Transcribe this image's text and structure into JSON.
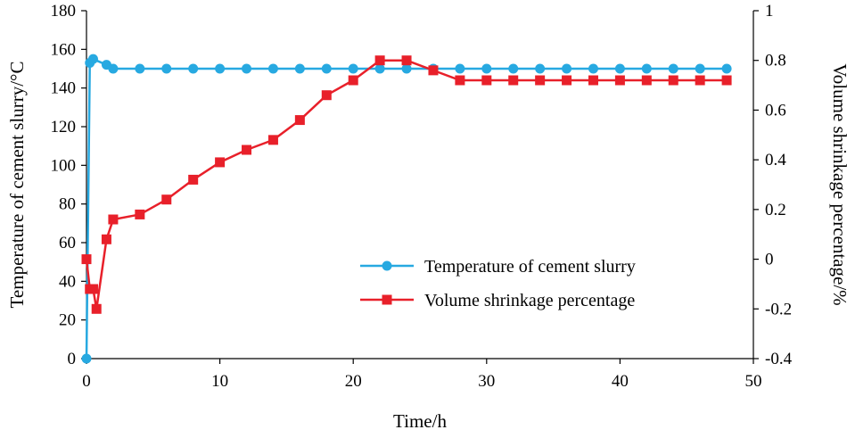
{
  "chart_data": {
    "type": "line",
    "xlabel": "Time/h",
    "ylabel_left": "Temperature of cement slurry/°C",
    "ylabel_right": "Volume shrinkage percentage/%",
    "xlim": [
      0,
      50
    ],
    "xticks": [
      0,
      10,
      20,
      30,
      40,
      50
    ],
    "ylim_left": [
      0,
      180
    ],
    "yticks_left": [
      0,
      20,
      40,
      60,
      80,
      100,
      120,
      140,
      160,
      180
    ],
    "ylim_right": [
      -0.4,
      1.0
    ],
    "yticks_right": [
      {
        "value": -0.4,
        "label": "-0.4"
      },
      {
        "value": -0.2,
        "label": "-0.2"
      },
      {
        "value": 0.0,
        "label": "0"
      },
      {
        "value": 0.2,
        "label": "0.2"
      },
      {
        "value": 0.4,
        "label": "0.4"
      },
      {
        "value": 0.6,
        "label": "0.6"
      },
      {
        "value": 0.8,
        "label": "0.8"
      },
      {
        "value": 1.0,
        "label": "1"
      }
    ],
    "legend_position": "lower-right",
    "series": [
      {
        "name": "Temperature of cement slurry",
        "axis": "left",
        "color": "#27a9e1",
        "marker": "circle",
        "x": [
          0,
          0.25,
          0.5,
          1.5,
          2,
          4,
          6,
          8,
          10,
          12,
          14,
          16,
          18,
          20,
          22,
          24,
          26,
          28,
          30,
          32,
          34,
          36,
          38,
          40,
          42,
          44,
          46,
          48
        ],
        "y": [
          0,
          153,
          155,
          152,
          150,
          150,
          150,
          150,
          150,
          150,
          150,
          150,
          150,
          150,
          150,
          150,
          150,
          150,
          150,
          150,
          150,
          150,
          150,
          150,
          150,
          150,
          150,
          150
        ]
      },
      {
        "name": "Volume shrinkage percentage",
        "axis": "right",
        "color": "#e8202a",
        "marker": "square",
        "x": [
          0,
          0.25,
          0.5,
          0.75,
          1.5,
          2,
          4,
          6,
          8,
          10,
          12,
          14,
          16,
          18,
          20,
          22,
          24,
          26,
          28,
          30,
          32,
          34,
          36,
          38,
          40,
          42,
          44,
          46,
          48
        ],
        "y": [
          0.0,
          -0.12,
          -0.12,
          -0.2,
          0.08,
          0.16,
          0.18,
          0.24,
          0.32,
          0.39,
          0.44,
          0.48,
          0.56,
          0.66,
          0.72,
          0.8,
          0.8,
          0.76,
          0.72,
          0.72,
          0.72,
          0.72,
          0.72,
          0.72,
          0.72,
          0.72,
          0.72,
          0.72,
          0.72
        ]
      }
    ]
  }
}
